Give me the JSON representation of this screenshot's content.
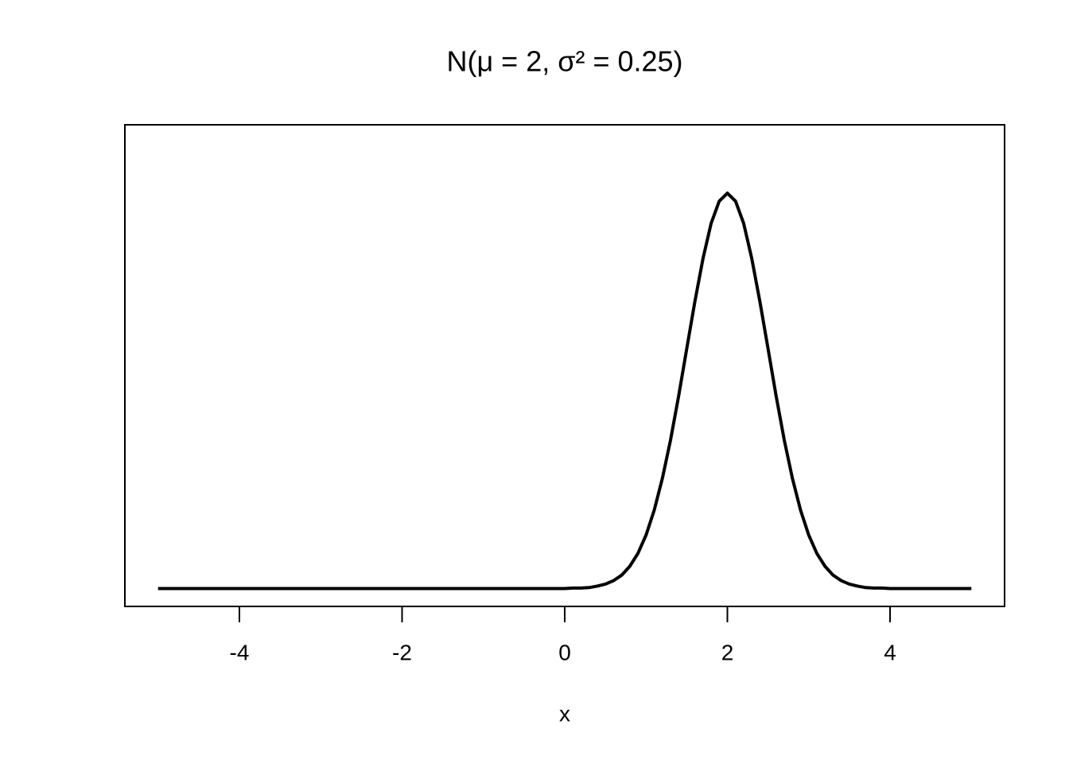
{
  "chart_data": {
    "type": "line",
    "title": "N(μ = 2, σ² = 0.25)",
    "xlabel": "x",
    "x": [
      -5,
      -4,
      -3,
      -2,
      -1,
      0,
      0.1,
      0.2,
      0.3,
      0.4,
      0.5,
      0.6,
      0.7,
      0.8,
      0.9,
      1.0,
      1.1,
      1.2,
      1.3,
      1.4,
      1.5,
      1.6,
      1.7,
      1.8,
      1.9,
      2.0,
      2.1,
      2.2,
      2.3,
      2.4,
      2.5,
      2.6,
      2.7,
      2.8,
      2.9,
      3.0,
      3.1,
      3.2,
      3.3,
      3.4,
      3.5,
      3.6,
      3.7,
      3.8,
      3.9,
      4.0,
      4.5,
      5
    ],
    "values": [
      0,
      0,
      0,
      0,
      0,
      0,
      0.001,
      0.001,
      0.002,
      0.005,
      0.009,
      0.016,
      0.027,
      0.045,
      0.071,
      0.108,
      0.158,
      0.222,
      0.299,
      0.388,
      0.484,
      0.579,
      0.666,
      0.737,
      0.782,
      0.798,
      0.782,
      0.737,
      0.666,
      0.579,
      0.484,
      0.388,
      0.299,
      0.222,
      0.158,
      0.108,
      0.071,
      0.045,
      0.027,
      0.016,
      0.009,
      0.005,
      0.002,
      0.001,
      0.001,
      0,
      0,
      0
    ],
    "color": "#000000",
    "xlim": [
      -5.408,
      5.408
    ],
    "xticks": [
      -4,
      -2,
      0,
      2,
      4
    ],
    "ylim": [
      -0.036,
      0.936
    ]
  }
}
